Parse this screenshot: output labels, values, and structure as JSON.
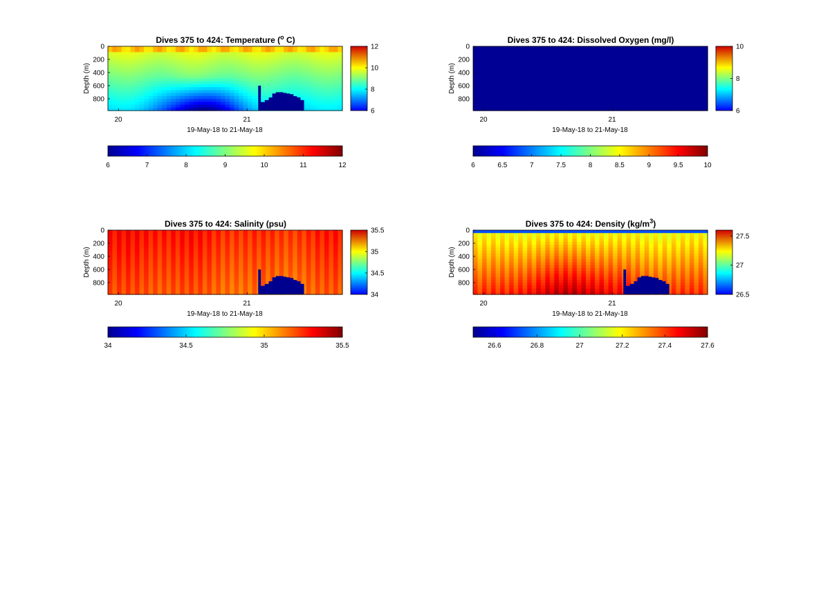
{
  "chart_data": [
    {
      "type": "heatmap",
      "title": "Dives 375 to 424: Temperature (° C)",
      "title_parts": [
        "Dives 375 to 424: Temperature (",
        "o",
        " C)"
      ],
      "ylabel": "Depth (m)",
      "xlabel": "19-May-18 to 21-May-18",
      "x_tick_labels": [
        "20",
        "21"
      ],
      "y_tick_labels": [
        "0",
        "200",
        "400",
        "600",
        "800"
      ],
      "y_ticks": [
        0,
        200,
        400,
        600,
        800
      ],
      "ylim": [
        0,
        980
      ],
      "y_reversed": true,
      "colorbar_side": {
        "ticks": [
          6,
          8,
          10,
          12
        ],
        "labels": [
          "6",
          "8",
          "10",
          "12"
        ]
      },
      "colorbar_bottom": {
        "ticks": [
          6,
          7,
          8,
          9,
          10,
          11,
          12
        ],
        "labels": [
          "6",
          "7",
          "8",
          "9",
          "10",
          "11",
          "12"
        ]
      },
      "clim": [
        6,
        12
      ],
      "field": "temperature"
    },
    {
      "type": "heatmap",
      "title": "Dives 375 to 424: Dissolved Oxygen (mg/l)",
      "title_parts": [
        "Dives 375 to 424: Dissolved Oxygen (mg/l)"
      ],
      "ylabel": "Depth (m)",
      "xlabel": "19-May-18 to 21-May-18",
      "x_tick_labels": [
        "20",
        "21"
      ],
      "y_tick_labels": [
        "0",
        "200",
        "400",
        "600",
        "800"
      ],
      "y_ticks": [
        0,
        200,
        400,
        600,
        800
      ],
      "ylim": [
        0,
        980
      ],
      "y_reversed": true,
      "colorbar_side": {
        "ticks": [
          6,
          8,
          10
        ],
        "labels": [
          "6",
          "8",
          "10"
        ]
      },
      "colorbar_bottom": {
        "ticks": [
          6,
          6.5,
          7,
          7.5,
          8,
          8.5,
          9,
          9.5,
          10
        ],
        "labels": [
          "6",
          "6.5",
          "7",
          "7.5",
          "8",
          "8.5",
          "9",
          "9.5",
          "10"
        ]
      },
      "clim": [
        6,
        10
      ],
      "field": "oxygen"
    },
    {
      "type": "heatmap",
      "title": "Dives 375 to 424: Salinity (psu)",
      "title_parts": [
        "Dives 375 to 424: Salinity (psu)"
      ],
      "ylabel": "Depth (m)",
      "xlabel": "19-May-18 to 21-May-18",
      "x_tick_labels": [
        "20",
        "21"
      ],
      "y_tick_labels": [
        "0",
        "200",
        "400",
        "600",
        "800"
      ],
      "y_ticks": [
        0,
        200,
        400,
        600,
        800
      ],
      "ylim": [
        0,
        980
      ],
      "y_reversed": true,
      "colorbar_side": {
        "ticks": [
          34,
          34.5,
          35,
          35.5
        ],
        "labels": [
          "34",
          "34.5",
          "35",
          "35.5"
        ]
      },
      "colorbar_bottom": {
        "ticks": [
          34,
          34.5,
          35,
          35.5
        ],
        "labels": [
          "34",
          "34.5",
          "35",
          "35.5"
        ]
      },
      "clim": [
        34,
        35.5
      ],
      "field": "salinity"
    },
    {
      "type": "heatmap",
      "title": "Dives 375 to 424: Density (kg/m³)",
      "title_parts": [
        "Dives 375 to 424: Density (kg/m",
        "3",
        ")"
      ],
      "ylabel": "Depth (m)",
      "xlabel": "19-May-18 to 21-May-18",
      "x_tick_labels": [
        "20",
        "21"
      ],
      "y_tick_labels": [
        "0",
        "200",
        "400",
        "600",
        "800"
      ],
      "y_ticks": [
        0,
        200,
        400,
        600,
        800
      ],
      "ylim": [
        0,
        980
      ],
      "y_reversed": true,
      "colorbar_side": {
        "ticks": [
          26.5,
          27,
          27.5
        ],
        "labels": [
          "26.5",
          "27",
          "27.5"
        ]
      },
      "colorbar_bottom": {
        "ticks": [
          26.6,
          26.8,
          27,
          27.2,
          27.4,
          27.6
        ],
        "labels": [
          "26.6",
          "26.8",
          "27",
          "27.2",
          "27.4",
          "27.6"
        ]
      },
      "clim": [
        26.5,
        27.6
      ],
      "field": "density"
    }
  ]
}
